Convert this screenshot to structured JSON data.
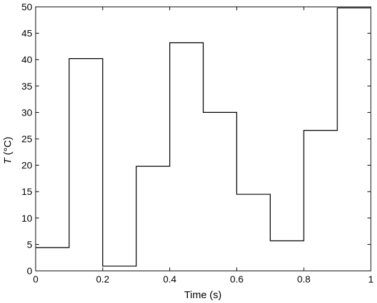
{
  "chart_data": {
    "type": "line",
    "step": true,
    "xlabel": "Time (s)",
    "ylabel_var": "T",
    "ylabel_unit": " (°C)",
    "xlim": [
      0,
      1
    ],
    "ylim": [
      0,
      50
    ],
    "xticks": [
      0,
      0.2,
      0.4,
      0.6,
      0.8,
      1
    ],
    "xtick_labels": [
      "0",
      "0.2",
      "0.4",
      "0.6",
      "0.8",
      "1"
    ],
    "yticks": [
      0,
      5,
      10,
      15,
      20,
      25,
      30,
      35,
      40,
      45,
      50
    ],
    "ytick_labels": [
      "0",
      "5",
      "10",
      "15",
      "20",
      "25",
      "30",
      "35",
      "40",
      "45",
      "50"
    ],
    "grid": false,
    "series": [
      {
        "color": "#8c8c8c",
        "segments": [
          {
            "x0": 0,
            "x1": 0.1,
            "y": 4.4
          },
          {
            "x0": 0.1,
            "x1": 0.2,
            "y": 40.2
          },
          {
            "x0": 0.2,
            "x1": 0.3,
            "y": 0.9
          },
          {
            "x0": 0.3,
            "x1": 0.4,
            "y": 19.8
          },
          {
            "x0": 0.4,
            "x1": 0.5,
            "y": 43.2
          },
          {
            "x0": 0.5,
            "x1": 0.6,
            "y": 30.0
          },
          {
            "x0": 0.6,
            "x1": 0.7,
            "y": 14.5
          },
          {
            "x0": 0.7,
            "x1": 0.8,
            "y": 5.7
          },
          {
            "x0": 0.8,
            "x1": 0.9,
            "y": 26.6
          },
          {
            "x0": 0.9,
            "x1": 1.0,
            "y": 49.8
          }
        ]
      },
      {
        "color": "#000000",
        "segments": [
          {
            "x0": 0,
            "x1": 0.1,
            "y": 4.4
          },
          {
            "x0": 0.1,
            "x1": 0.2,
            "y": 40.2
          },
          {
            "x0": 0.2,
            "x1": 0.3,
            "y": 0.9
          },
          {
            "x0": 0.3,
            "x1": 0.4,
            "y": 19.8
          },
          {
            "x0": 0.4,
            "x1": 0.5,
            "y": 43.2
          },
          {
            "x0": 0.5,
            "x1": 0.6,
            "y": 30.0
          },
          {
            "x0": 0.6,
            "x1": 0.7,
            "y": 14.5
          },
          {
            "x0": 0.7,
            "x1": 0.8,
            "y": 5.7
          },
          {
            "x0": 0.8,
            "x1": 0.9,
            "y": 26.6
          },
          {
            "x0": 0.9,
            "x1": 1.0,
            "y": 49.8
          }
        ]
      }
    ]
  }
}
